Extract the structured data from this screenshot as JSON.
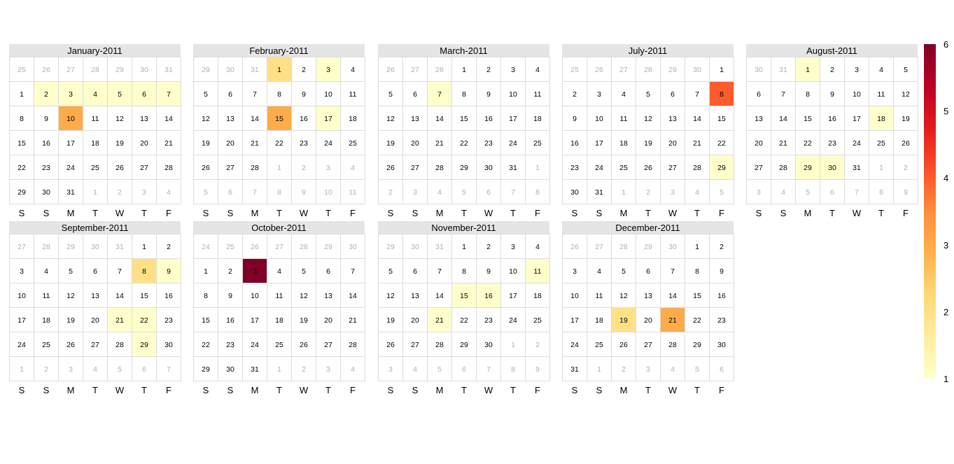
{
  "chart_data": {
    "type": "heatmap",
    "weekday_labels": [
      "S",
      "S",
      "M",
      "T",
      "W",
      "T",
      "F"
    ],
    "months": [
      {
        "title": "January-2011",
        "days": [
          [
            25,
            26,
            27,
            28,
            29,
            30,
            31
          ],
          [
            1,
            2,
            3,
            4,
            5,
            6,
            7
          ],
          [
            8,
            9,
            10,
            11,
            12,
            13,
            14
          ],
          [
            15,
            16,
            17,
            18,
            19,
            20,
            21
          ],
          [
            22,
            23,
            24,
            25,
            26,
            27,
            28
          ],
          [
            29,
            30,
            31,
            1,
            2,
            3,
            4
          ]
        ],
        "values": {
          "2": 1,
          "3": 1,
          "4": 1,
          "5": 1,
          "6": 1,
          "7": 1,
          "10": 3
        }
      },
      {
        "title": "February-2011",
        "days": [
          [
            29,
            30,
            31,
            1,
            2,
            3,
            4
          ],
          [
            5,
            6,
            7,
            8,
            9,
            10,
            11
          ],
          [
            12,
            13,
            14,
            15,
            16,
            17,
            18
          ],
          [
            19,
            20,
            21,
            22,
            23,
            24,
            25
          ],
          [
            26,
            27,
            28,
            1,
            2,
            3,
            4
          ],
          [
            5,
            6,
            7,
            8,
            9,
            10,
            11
          ]
        ],
        "values": {
          "1": 2,
          "3": 1,
          "15": 3,
          "17": 1
        }
      },
      {
        "title": "March-2011",
        "days": [
          [
            26,
            27,
            28,
            1,
            2,
            3,
            4
          ],
          [
            5,
            6,
            7,
            8,
            9,
            10,
            11
          ],
          [
            12,
            13,
            14,
            15,
            16,
            17,
            18
          ],
          [
            19,
            20,
            21,
            22,
            23,
            24,
            25
          ],
          [
            26,
            27,
            28,
            29,
            30,
            31,
            1
          ],
          [
            2,
            3,
            4,
            5,
            6,
            7,
            8
          ]
        ],
        "values": {
          "7": 1
        }
      },
      {
        "title": "July-2011",
        "days": [
          [
            25,
            26,
            27,
            28,
            29,
            30,
            1
          ],
          [
            2,
            3,
            4,
            5,
            6,
            7,
            8
          ],
          [
            9,
            10,
            11,
            12,
            13,
            14,
            15
          ],
          [
            16,
            17,
            18,
            19,
            20,
            21,
            22
          ],
          [
            23,
            24,
            25,
            26,
            27,
            28,
            29
          ],
          [
            30,
            31,
            1,
            2,
            3,
            4,
            5
          ]
        ],
        "values": {
          "8": 4,
          "29": 1
        }
      },
      {
        "title": "August-2011",
        "days": [
          [
            30,
            31,
            1,
            2,
            3,
            4,
            5
          ],
          [
            6,
            7,
            8,
            9,
            10,
            11,
            12
          ],
          [
            13,
            14,
            15,
            16,
            17,
            18,
            19
          ],
          [
            20,
            21,
            22,
            23,
            24,
            25,
            26
          ],
          [
            27,
            28,
            29,
            30,
            31,
            1,
            2
          ],
          [
            3,
            4,
            5,
            6,
            7,
            8,
            9
          ]
        ],
        "values": {
          "1": 1,
          "18": 1,
          "29": 1,
          "30": 1
        }
      },
      {
        "title": "September-2011",
        "days": [
          [
            27,
            28,
            29,
            30,
            31,
            1,
            2
          ],
          [
            3,
            4,
            5,
            6,
            7,
            8,
            9
          ],
          [
            10,
            11,
            12,
            13,
            14,
            15,
            16
          ],
          [
            17,
            18,
            19,
            20,
            21,
            22,
            23
          ],
          [
            24,
            25,
            26,
            27,
            28,
            29,
            30
          ],
          [
            1,
            2,
            3,
            4,
            5,
            6,
            7
          ]
        ],
        "values": {
          "8": 2,
          "9": 1,
          "21": 1,
          "22": 1,
          "29": 1
        }
      },
      {
        "title": "October-2011",
        "days": [
          [
            24,
            25,
            26,
            27,
            28,
            29,
            30
          ],
          [
            1,
            2,
            3,
            4,
            5,
            6,
            7
          ],
          [
            8,
            9,
            10,
            11,
            12,
            13,
            14
          ],
          [
            15,
            16,
            17,
            18,
            19,
            20,
            21
          ],
          [
            22,
            23,
            24,
            25,
            26,
            27,
            28
          ],
          [
            29,
            30,
            31,
            1,
            2,
            3,
            4
          ]
        ],
        "values": {
          "3": 6
        }
      },
      {
        "title": "November-2011",
        "days": [
          [
            29,
            30,
            31,
            1,
            2,
            3,
            4
          ],
          [
            5,
            6,
            7,
            8,
            9,
            10,
            11
          ],
          [
            12,
            13,
            14,
            15,
            16,
            17,
            18
          ],
          [
            19,
            20,
            21,
            22,
            23,
            24,
            25
          ],
          [
            26,
            27,
            28,
            29,
            30,
            1,
            2
          ],
          [
            3,
            4,
            5,
            6,
            7,
            8,
            9
          ]
        ],
        "values": {
          "11": 1,
          "15": 1,
          "16": 1,
          "21": 1
        }
      },
      {
        "title": "December-2011",
        "days": [
          [
            26,
            27,
            28,
            29,
            30,
            1,
            2
          ],
          [
            3,
            4,
            5,
            6,
            7,
            8,
            9
          ],
          [
            10,
            11,
            12,
            13,
            14,
            15,
            16
          ],
          [
            17,
            18,
            19,
            20,
            21,
            22,
            23
          ],
          [
            24,
            25,
            26,
            27,
            28,
            29,
            30
          ],
          [
            31,
            1,
            2,
            3,
            4,
            5,
            6
          ]
        ],
        "values": {
          "19": 2,
          "21": 3
        }
      }
    ],
    "colorbar": {
      "min": 1,
      "max": 6,
      "ticks": [
        "1",
        "2",
        "3",
        "4",
        "5",
        "6"
      ],
      "stops": [
        "#ffffcc",
        "#ffeda0",
        "#fed976",
        "#feb24c",
        "#fd8d3c",
        "#fc4e2a",
        "#e31a1c",
        "#bd0026",
        "#800026"
      ]
    },
    "colors": {
      "header_bg": "#e5e5e5",
      "cell_border": "#dcdcdc",
      "in_month_text": "#000000",
      "out_month_text": "#b0b0b0"
    }
  }
}
